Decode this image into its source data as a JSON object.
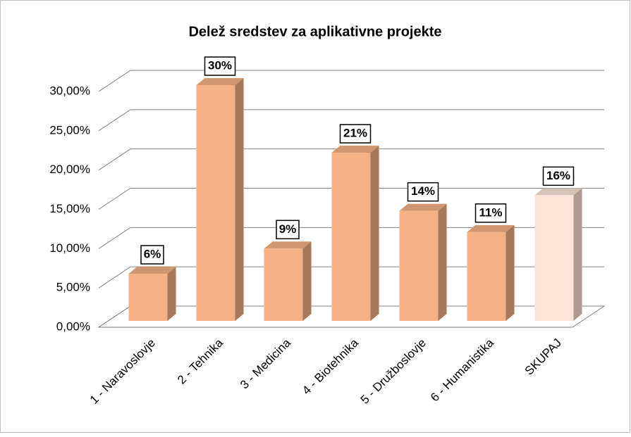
{
  "chart_data": {
    "type": "bar3d",
    "title": "Delež sredstev za aplikativne projekte",
    "categories": [
      "1 - Naravoslovje",
      "2 - Tehnika",
      "3 - Medicina",
      "4 - Biotehnika",
      "5 - Družboslovje",
      "6 - Humanistika",
      "SKUPAJ"
    ],
    "values": [
      6,
      30,
      9.2,
      21.4,
      14,
      11.3,
      16
    ],
    "value_labels": [
      "6%",
      "30%",
      "9%",
      "21%",
      "14%",
      "11%",
      "16%"
    ],
    "colors": [
      "#f4b183",
      "#f4b183",
      "#f4b183",
      "#f4b183",
      "#f4b183",
      "#f4b183",
      "#fde4d6"
    ],
    "ylim": [
      0,
      30
    ],
    "yticks": [
      {
        "value": 0,
        "label": "0,00%"
      },
      {
        "value": 5,
        "label": "5,00%"
      },
      {
        "value": 10,
        "label": "10,00%"
      },
      {
        "value": 15,
        "label": "15,00%"
      },
      {
        "value": 20,
        "label": "20,00%"
      },
      {
        "value": 25,
        "label": "25,00%"
      },
      {
        "value": 30,
        "label": "30,00%"
      }
    ],
    "grid": true
  }
}
